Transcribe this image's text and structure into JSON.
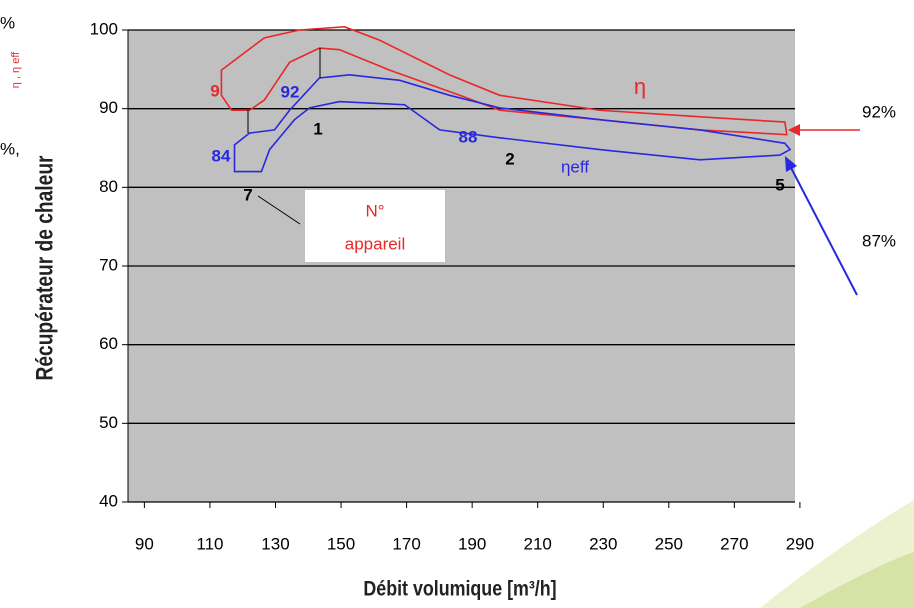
{
  "chart_data": {
    "type": "envelope",
    "x_label": "Débit volumique  [m³/h]",
    "y_label": "Récupérateur de chaleur",
    "y_symbol": "η , η eff",
    "xlim": [
      85,
      288.5
    ],
    "ylim": [
      40,
      100
    ],
    "xticks": [
      90,
      110,
      130,
      150,
      170,
      190,
      210,
      230,
      250,
      270,
      290
    ],
    "yticks": [
      40,
      50,
      60,
      70,
      80,
      90,
      100
    ],
    "grid": true,
    "plot_color": "#c0c0c0",
    "series": [
      {
        "name": "η",
        "color": "#e8282a",
        "x": [
          113.5,
          113.5,
          126.6,
          137.3,
          151.1,
          161.8,
          183.1,
          198.4,
          228.9,
          265.6,
          285.4,
          286.0,
          259.5,
          228.9,
          198.4,
          186.2,
          164.8,
          149.5,
          143.4,
          134.3,
          126.6,
          122.1,
          116.6
        ],
        "values": [
          91.7,
          94.9,
          99.0,
          100.0,
          100.4,
          98.7,
          94.3,
          91.7,
          89.8,
          88.8,
          88.3,
          86.7,
          87.3,
          88.6,
          89.8,
          91.7,
          94.9,
          97.5,
          97.7,
          95.9,
          91.1,
          89.8,
          89.8
        ]
      },
      {
        "name": "ηeff",
        "color": "#2828e0",
        "x": [
          117.5,
          122.1,
          129.7,
          134.3,
          143.4,
          152.6,
          167.9,
          183.1,
          198.4,
          228.9,
          259.5,
          285.4,
          287.0,
          283.9,
          259.5,
          228.9,
          198.4,
          180.1,
          169.4,
          149.5,
          140.4,
          135.8,
          128.2,
          125.7,
          117.5
        ],
        "values": [
          85.4,
          86.9,
          87.3,
          89.8,
          93.9,
          94.3,
          93.6,
          91.7,
          90.1,
          88.6,
          87.3,
          85.6,
          84.8,
          84.1,
          83.5,
          84.8,
          86.3,
          87.3,
          90.5,
          90.9,
          90.1,
          88.6,
          84.8,
          82.0,
          82.0
        ]
      }
    ],
    "annotations": [
      {
        "text": "9",
        "color": "#e8282a"
      },
      {
        "text": "92",
        "color": "#2828e0"
      },
      {
        "text": "1",
        "color": "#000000"
      },
      {
        "text": "84",
        "color": "#2828e0"
      },
      {
        "text": "88",
        "color": "#2828e0"
      },
      {
        "text": "2",
        "color": "#000000"
      },
      {
        "text": "5",
        "color": "#000000"
      },
      {
        "text": "7",
        "color": "#000000"
      },
      {
        "text": "N°",
        "color": "#e8282a"
      },
      {
        "text": "appareil",
        "color": "#e8282a"
      },
      {
        "text": "92%",
        "color": "#000000"
      },
      {
        "text": "87%",
        "color": "#000000"
      },
      {
        "text": "%",
        "color": "#000000"
      },
      {
        "text": "%,",
        "color": "#000000"
      }
    ]
  }
}
